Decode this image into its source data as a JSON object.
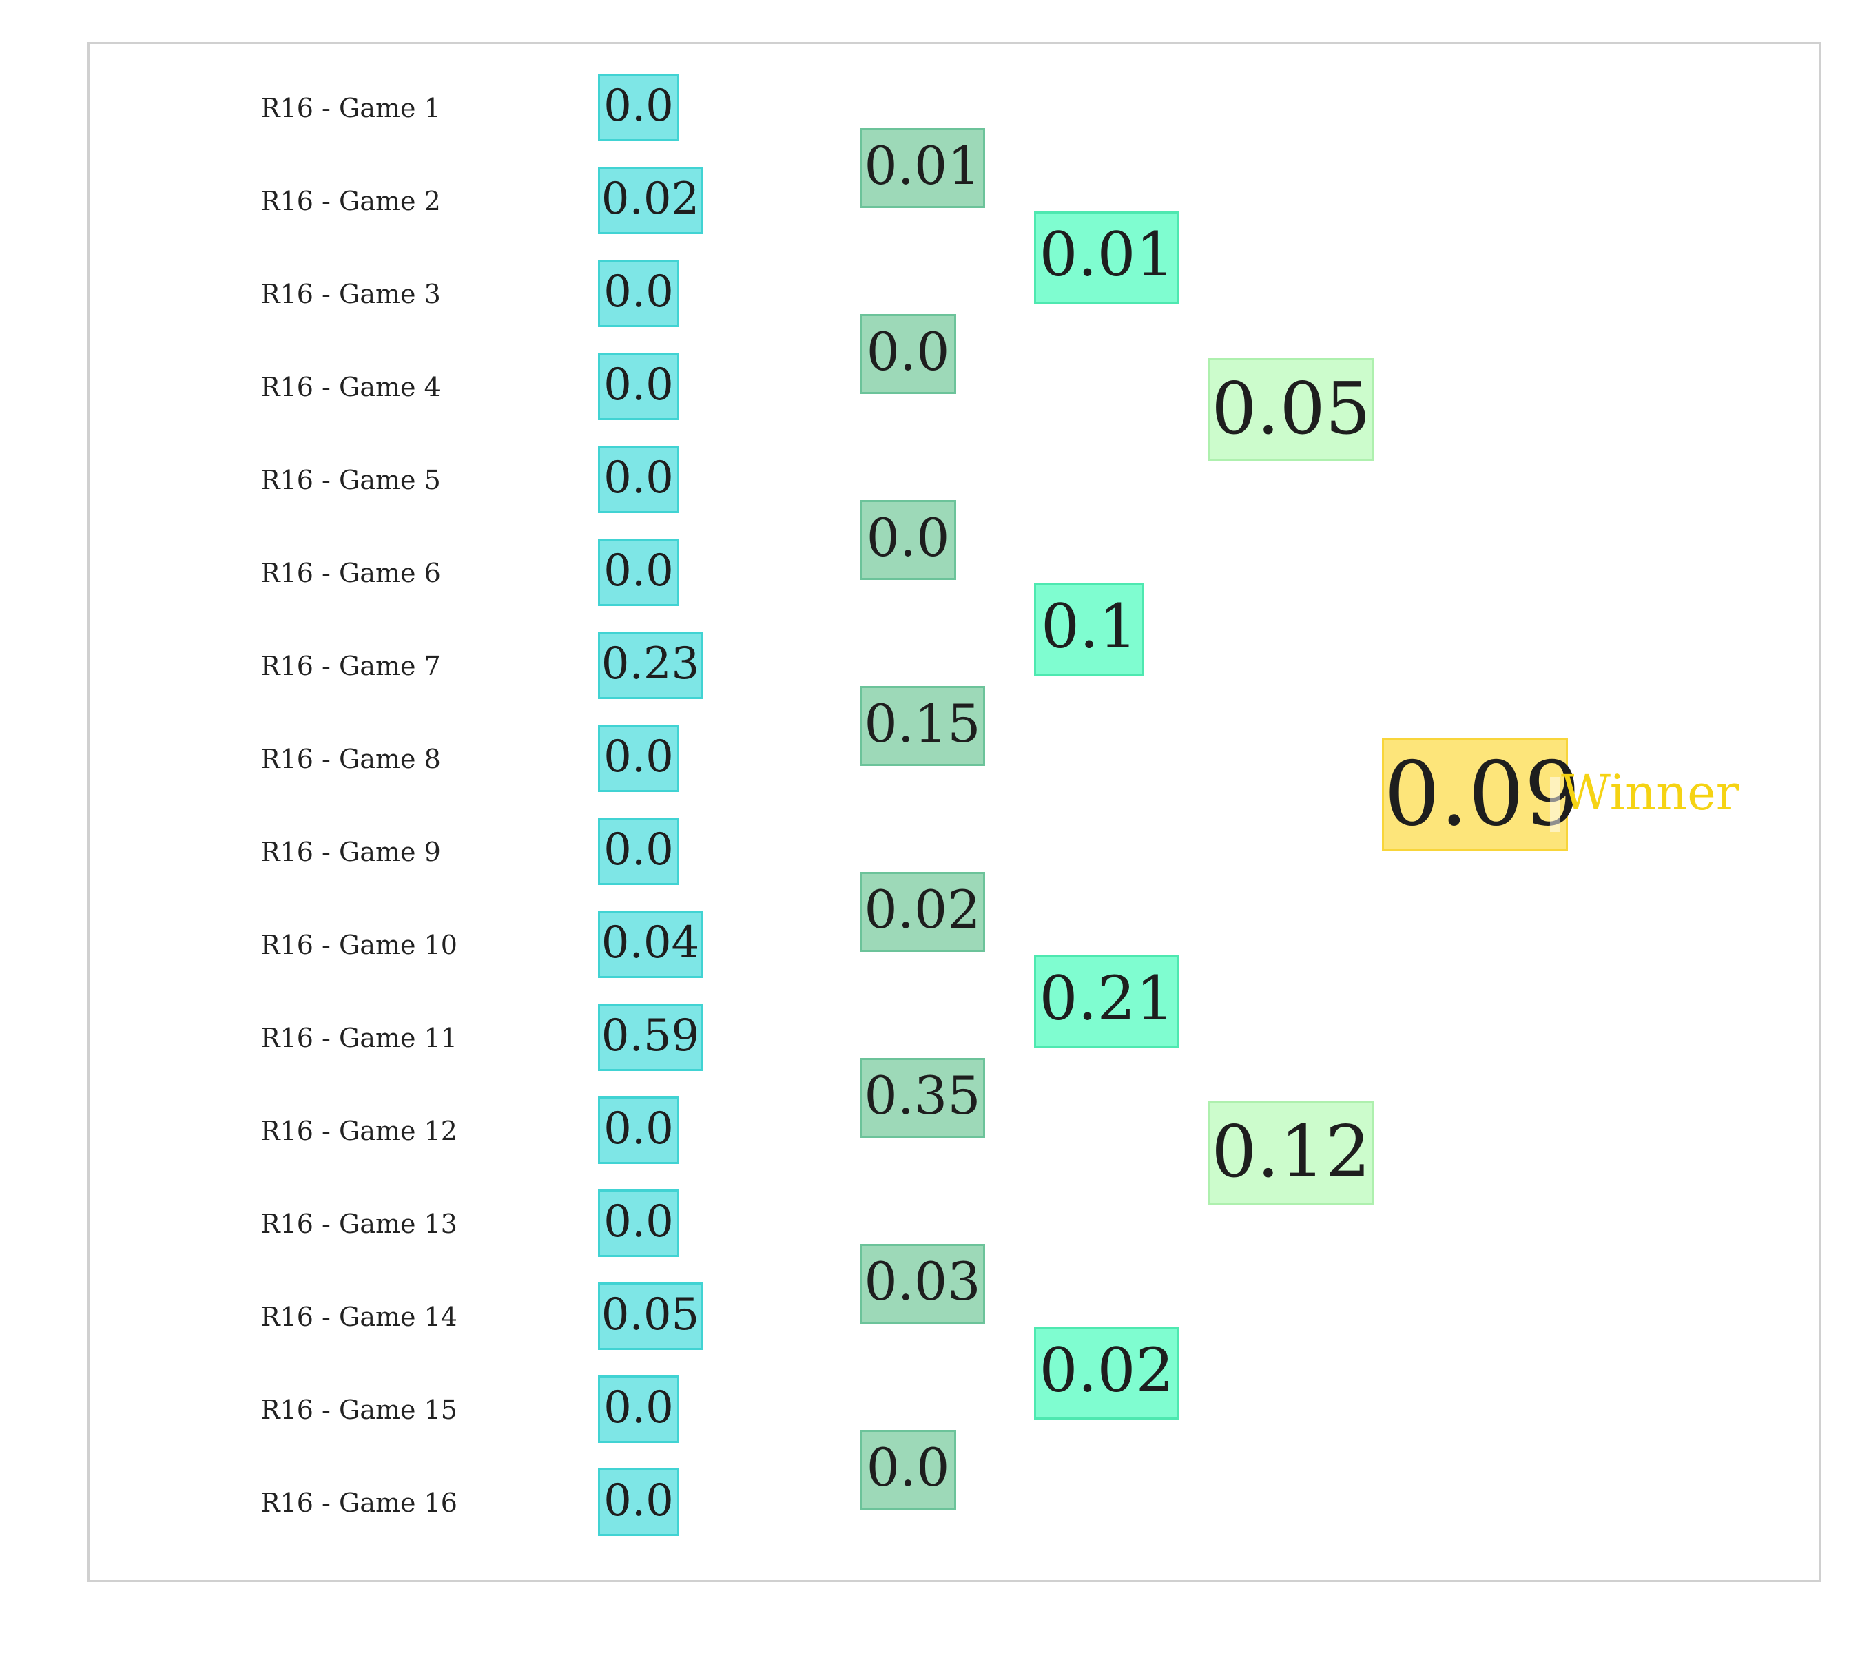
{
  "colors": {
    "r16_fill": "#7ee6e6",
    "r16_border": "#41d3d3",
    "qf_fill": "#9dd9b8",
    "qf_border": "#6cc39a",
    "sf_fill": "#7ffdd0",
    "sf_border": "#4ee8b0",
    "final_fill": "#ccfccc",
    "final_border": "#aef0ae",
    "champion_fill": "#fde57a",
    "champion_border": "#f8d53a",
    "winner_label": "#f5d313"
  },
  "games": [
    {
      "label": "R16 - Game 1",
      "value": "0.0"
    },
    {
      "label": "R16 - Game 2",
      "value": "0.02"
    },
    {
      "label": "R16 - Game 3",
      "value": "0.0"
    },
    {
      "label": "R16 - Game 4",
      "value": "0.0"
    },
    {
      "label": "R16 - Game 5",
      "value": "0.0"
    },
    {
      "label": "R16 - Game 6",
      "value": "0.0"
    },
    {
      "label": "R16 - Game 7",
      "value": "0.23"
    },
    {
      "label": "R16 - Game 8",
      "value": "0.0"
    },
    {
      "label": "R16 - Game 9",
      "value": "0.0"
    },
    {
      "label": "R16 - Game 10",
      "value": "0.04"
    },
    {
      "label": "R16 - Game 11",
      "value": "0.59"
    },
    {
      "label": "R16 - Game 12",
      "value": "0.0"
    },
    {
      "label": "R16 - Game 13",
      "value": "0.0"
    },
    {
      "label": "R16 - Game 14",
      "value": "0.05"
    },
    {
      "label": "R16 - Game 15",
      "value": "0.0"
    },
    {
      "label": "R16 - Game 16",
      "value": "0.0"
    }
  ],
  "quarterfinals": [
    "0.01",
    "0.0",
    "0.0",
    "0.15",
    "0.02",
    "0.35",
    "0.03",
    "0.0"
  ],
  "semifinals": [
    "0.01",
    "0.1",
    "0.21",
    "0.02"
  ],
  "finals": [
    "0.05",
    "0.12"
  ],
  "champion": {
    "value": "0.09",
    "label": "Winner"
  }
}
